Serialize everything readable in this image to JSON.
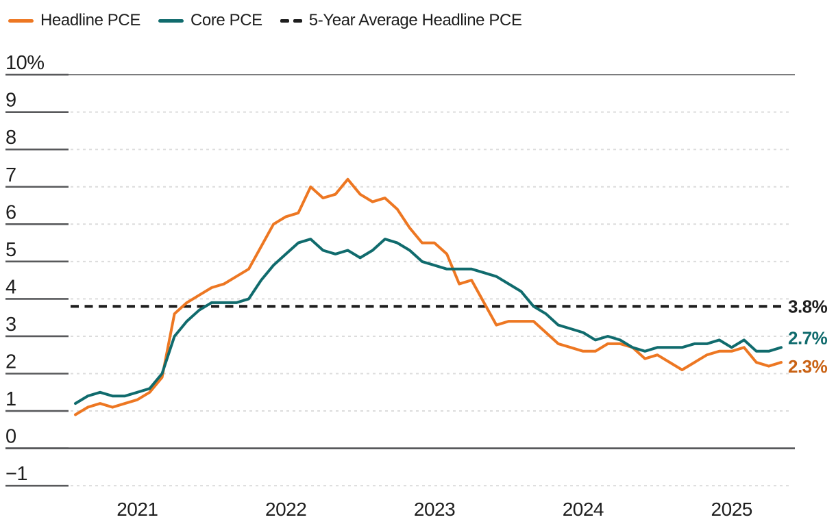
{
  "legend": [
    {
      "label": "Headline PCE",
      "color": "#ed7722",
      "style": "solid"
    },
    {
      "label": "Core PCE",
      "color": "#106b6d",
      "style": "solid"
    },
    {
      "label": "5-Year Average Headline PCE",
      "color": "#1e1e1e",
      "style": "dashed"
    }
  ],
  "chart_data": {
    "type": "line",
    "title": "",
    "xlabel": "",
    "ylabel": "",
    "x_unit": "month",
    "x_start": "2020-08",
    "x_end": "2025-05",
    "x_tick_labels": [
      "2021",
      "2022",
      "2023",
      "2024",
      "2025"
    ],
    "x_tick_month_indices": [
      5,
      17,
      29,
      41,
      53
    ],
    "y_tick_labels": [
      "10%",
      "9",
      "8",
      "7",
      "6",
      "5",
      "4",
      "3",
      "2",
      "1",
      "0",
      "−1"
    ],
    "y_tick_values": [
      10,
      9,
      8,
      7,
      6,
      5,
      4,
      3,
      2,
      1,
      0,
      -1
    ],
    "ylim": [
      -1,
      10
    ],
    "grid": "horizontal-dashed",
    "legend_position": "top-left",
    "series": [
      {
        "name": "Headline PCE",
        "color": "#ed7722",
        "style": "solid",
        "values": [
          0.9,
          1.1,
          1.2,
          1.1,
          1.2,
          1.3,
          1.5,
          1.9,
          3.6,
          3.9,
          4.1,
          4.3,
          4.4,
          4.6,
          4.8,
          5.4,
          6.0,
          6.2,
          6.3,
          7.0,
          6.7,
          6.8,
          7.2,
          6.8,
          6.6,
          6.7,
          6.4,
          5.9,
          5.5,
          5.5,
          5.2,
          4.4,
          4.5,
          3.9,
          3.3,
          3.4,
          3.4,
          3.4,
          3.1,
          2.8,
          2.7,
          2.6,
          2.6,
          2.8,
          2.8,
          2.7,
          2.4,
          2.5,
          2.3,
          2.1,
          2.3,
          2.5,
          2.6,
          2.6,
          2.7,
          2.3,
          2.2,
          2.3
        ]
      },
      {
        "name": "Core PCE",
        "color": "#106b6d",
        "style": "solid",
        "values": [
          1.2,
          1.4,
          1.5,
          1.4,
          1.4,
          1.5,
          1.6,
          2.0,
          3.0,
          3.4,
          3.7,
          3.9,
          3.9,
          3.9,
          4.0,
          4.5,
          4.9,
          5.2,
          5.5,
          5.6,
          5.3,
          5.2,
          5.3,
          5.1,
          5.3,
          5.6,
          5.5,
          5.3,
          5.0,
          4.9,
          4.8,
          4.8,
          4.8,
          4.7,
          4.6,
          4.4,
          4.2,
          3.8,
          3.6,
          3.3,
          3.2,
          3.1,
          2.9,
          3.0,
          2.9,
          2.7,
          2.6,
          2.7,
          2.7,
          2.7,
          2.8,
          2.8,
          2.9,
          2.7,
          2.9,
          2.6,
          2.6,
          2.7
        ]
      },
      {
        "name": "5-Year Average Headline PCE",
        "color": "#1e1e1e",
        "style": "dashed",
        "constant_value": 3.8
      }
    ],
    "end_value_labels": [
      {
        "text": "3.8%",
        "value": 3.8,
        "color": "#1e1e1e"
      },
      {
        "text": "2.7%",
        "value": 2.7,
        "color": "#106b6d"
      },
      {
        "text": "2.3%",
        "value": 2.3,
        "color": "#c96214"
      }
    ]
  }
}
